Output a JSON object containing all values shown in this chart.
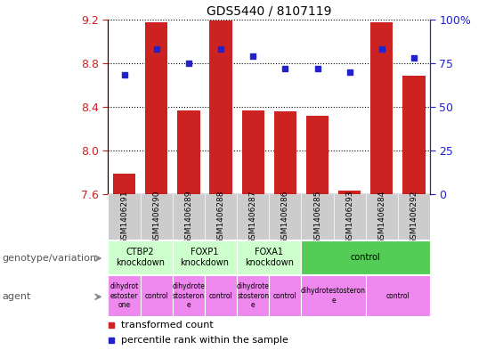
{
  "title": "GDS5440 / 8107119",
  "samples": [
    "GSM1406291",
    "GSM1406290",
    "GSM1406289",
    "GSM1406288",
    "GSM1406287",
    "GSM1406286",
    "GSM1406285",
    "GSM1406293",
    "GSM1406284",
    "GSM1406292"
  ],
  "bar_values": [
    7.79,
    9.17,
    8.37,
    9.19,
    8.37,
    8.36,
    8.32,
    7.63,
    9.17,
    8.68
  ],
  "dot_percentiles": [
    68,
    83,
    75,
    83,
    79,
    72,
    72,
    70,
    83,
    78
  ],
  "bar_color": "#cc2222",
  "dot_color": "#2222cc",
  "ymin": 7.6,
  "ymax": 9.2,
  "yticks": [
    7.6,
    8.0,
    8.4,
    8.8,
    9.2
  ],
  "y2ticks": [
    0,
    25,
    50,
    75,
    100
  ],
  "y2labels": [
    "0",
    "25",
    "50",
    "75",
    "100%"
  ],
  "y2min": 0,
  "y2max": 100,
  "genotype_groups": [
    {
      "label": "CTBP2\nknockdown",
      "start": 0,
      "end": 2,
      "color": "#ccffcc"
    },
    {
      "label": "FOXP1\nknockdown",
      "start": 2,
      "end": 4,
      "color": "#ccffcc"
    },
    {
      "label": "FOXA1\nknockdown",
      "start": 4,
      "end": 6,
      "color": "#ccffcc"
    },
    {
      "label": "control",
      "start": 6,
      "end": 10,
      "color": "#55cc55"
    }
  ],
  "agent_groups": [
    {
      "label": "dihydrot\nestoster\none",
      "start": 0,
      "end": 1,
      "color": "#ee88ee"
    },
    {
      "label": "control",
      "start": 1,
      "end": 2,
      "color": "#ee88ee"
    },
    {
      "label": "dihydrote\nstosteron\ne",
      "start": 2,
      "end": 3,
      "color": "#ee88ee"
    },
    {
      "label": "control",
      "start": 3,
      "end": 4,
      "color": "#ee88ee"
    },
    {
      "label": "dihydrote\nstosteron\ne",
      "start": 4,
      "end": 5,
      "color": "#ee88ee"
    },
    {
      "label": "control",
      "start": 5,
      "end": 6,
      "color": "#ee88ee"
    },
    {
      "label": "dihydrotestosteron\ne",
      "start": 6,
      "end": 8,
      "color": "#ee88ee"
    },
    {
      "label": "control",
      "start": 8,
      "end": 10,
      "color": "#ee88ee"
    }
  ],
  "legend_label_bar": "transformed count",
  "legend_label_dot": "percentile rank within the sample",
  "xlabel_genotype": "genotype/variation",
  "xlabel_agent": "agent",
  "background_color": "#ffffff",
  "tick_color_left": "#cc2222",
  "tick_color_right": "#2222cc",
  "xticklabel_bg": "#cccccc"
}
